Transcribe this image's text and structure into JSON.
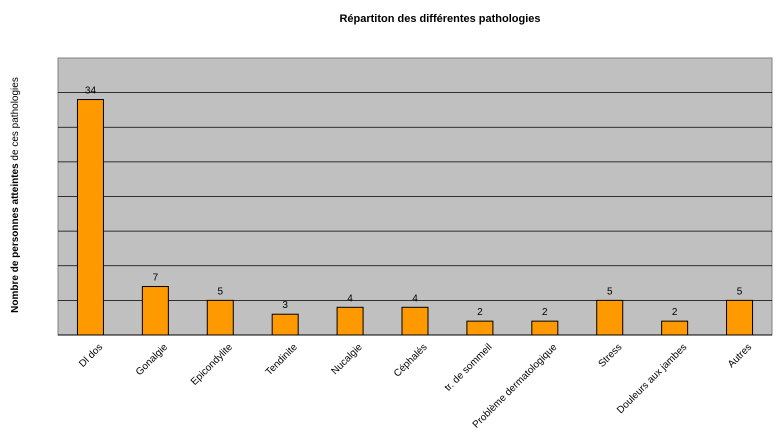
{
  "chart_data": {
    "type": "bar",
    "title": "Répartiton des différentes pathologies",
    "ylabel_bold": "Nombre de personnes atteintes",
    "ylabel_rest": " de ces pathologies",
    "xlabel": "",
    "categories": [
      "Dl dos",
      "Gonalgie",
      "Epicondylite",
      "Tendinite",
      "Nucalgie",
      "Céphalés",
      "tr. de sommeil",
      "Problème dermatologique",
      "Stress",
      "Douleurs aux jambes",
      "Autres"
    ],
    "values": [
      34,
      7,
      5,
      3,
      4,
      4,
      2,
      2,
      5,
      2,
      5
    ],
    "ylim": [
      0,
      40
    ],
    "grid_step": 5,
    "grid": true,
    "legend": "none",
    "colors": {
      "bar_fill": "#FF9900",
      "bar_stroke": "#000000",
      "plot_background": "#C0C0C0",
      "grid": "#000000"
    }
  }
}
